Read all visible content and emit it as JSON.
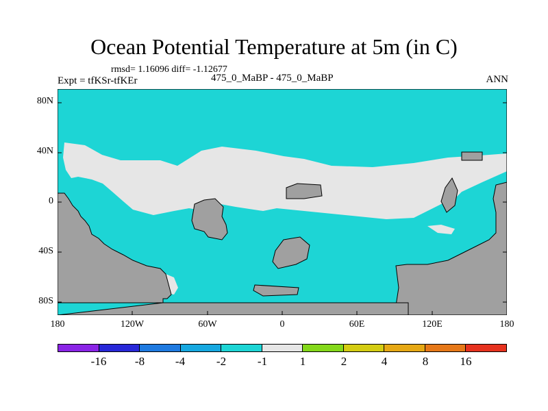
{
  "header": {
    "title": "Ocean Potential Temperature at 5m (in C)",
    "stats": "rmsd= 1.16096 diff= -1.12677",
    "expt": "Expt = tfKSr-tfKEr",
    "case": "475_0_MaBP - 475_0_MaBP",
    "season": "ANN"
  },
  "axes": {
    "lat_labels": [
      "80N",
      "40N",
      "0",
      "40S",
      "80S"
    ],
    "lon_labels": [
      "180",
      "120W",
      "60W",
      "0",
      "60E",
      "120E",
      "180"
    ]
  },
  "colors": {
    "ocean_bin": "#1dd5d5",
    "near_zero_bin": "#e6e6e6",
    "land": "#a0a0a0",
    "coast": "#000000"
  },
  "colorbar": {
    "colors": [
      "#8a24e6",
      "#2828d8",
      "#1f7ae0",
      "#16a8e0",
      "#1dd5d5",
      "#e6e6e6",
      "#84d81a",
      "#d4cc12",
      "#e6a814",
      "#e67818",
      "#e6321e"
    ],
    "labels": [
      "-16",
      "-8",
      "-4",
      "-2",
      "-1",
      "1",
      "2",
      "4",
      "8",
      "16"
    ]
  }
}
